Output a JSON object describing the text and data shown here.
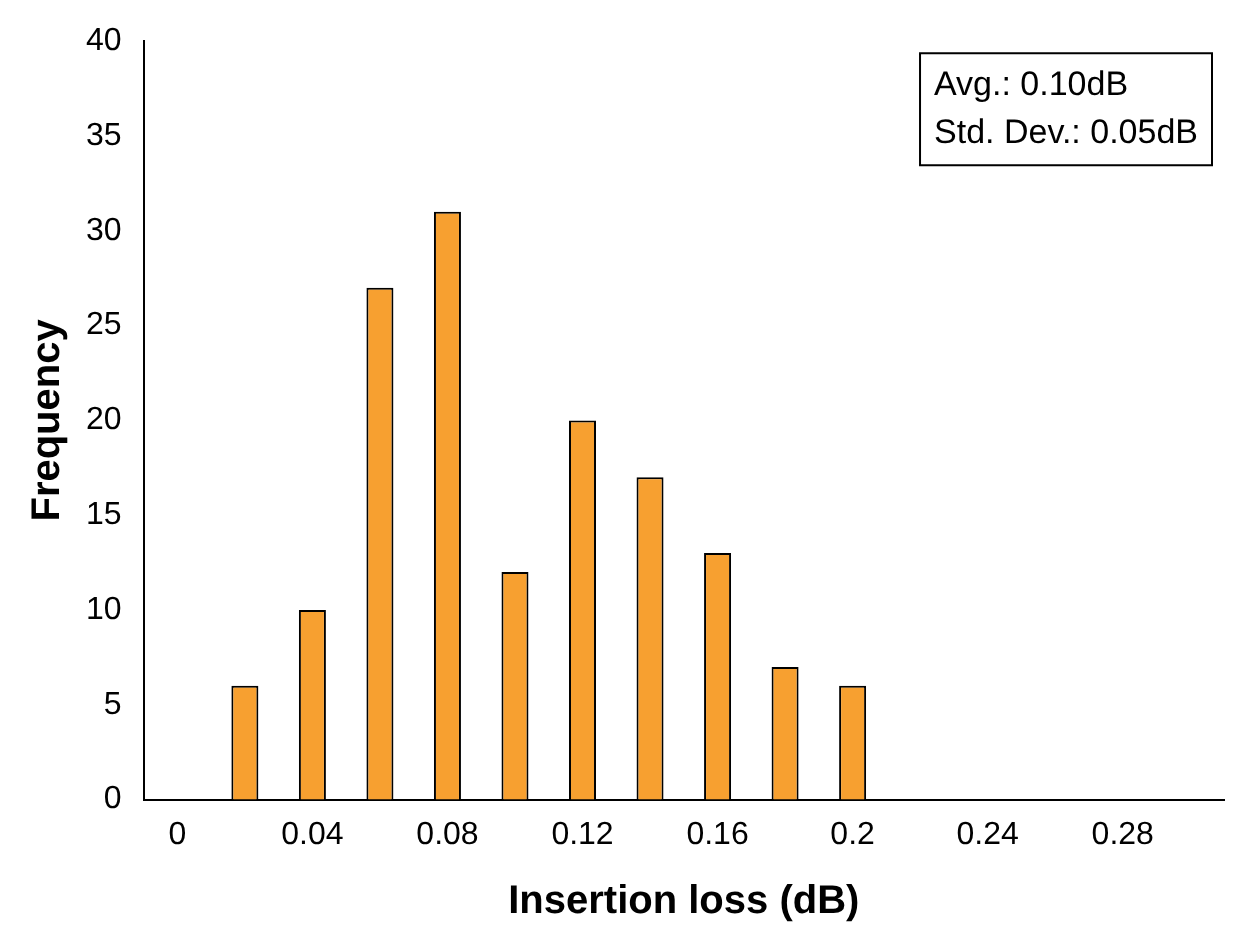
{
  "chart_data": {
    "type": "bar",
    "xlabel": "Insertion loss (dB)",
    "ylabel": "Frequency",
    "categories": [
      "0",
      null,
      "0.04",
      null,
      "0.08",
      null,
      "0.12",
      null,
      "0.16",
      null,
      "0.2",
      null,
      "0.24",
      null,
      "0.28",
      null
    ],
    "values": [
      0,
      6,
      10,
      27,
      31,
      12,
      20,
      17,
      13,
      7,
      6,
      0,
      0,
      0,
      0,
      0
    ],
    "color": "#f7a030",
    "ylim": [
      0,
      40
    ],
    "yticks": [
      0,
      5,
      10,
      15,
      20,
      25,
      30,
      35,
      40
    ],
    "grid": false,
    "legend": false,
    "annotations": [
      "Avg.: 0.10dB",
      "Std. Dev.: 0.05dB"
    ]
  }
}
